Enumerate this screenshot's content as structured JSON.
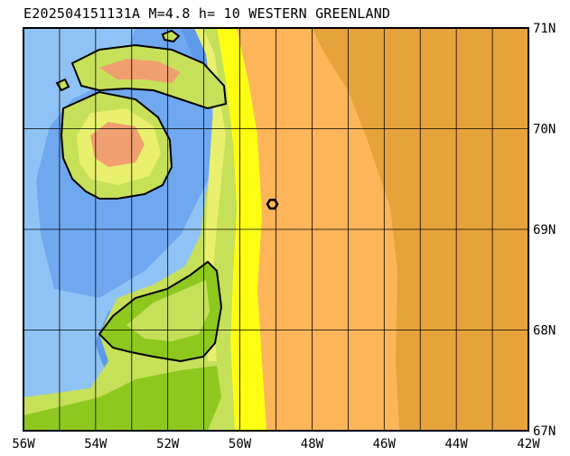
{
  "title": "E202504151131A M=4.8 h= 10 WESTERN GREENLAND",
  "map": {
    "lon_range": [
      -56,
      -42
    ],
    "lat_range": [
      67,
      71
    ],
    "lon_ticks": [
      {
        "value": -56,
        "label": "56W"
      },
      {
        "value": -54,
        "label": "54W"
      },
      {
        "value": -52,
        "label": "52W"
      },
      {
        "value": -50,
        "label": "50W"
      },
      {
        "value": -48,
        "label": "48W"
      },
      {
        "value": -46,
        "label": "46W"
      },
      {
        "value": -44,
        "label": "44W"
      },
      {
        "value": -42,
        "label": "42W"
      }
    ],
    "lat_ticks": [
      {
        "value": 71,
        "label": "71N"
      },
      {
        "value": 70,
        "label": "70N"
      },
      {
        "value": 69,
        "label": "69N"
      },
      {
        "value": 68,
        "label": "68N"
      },
      {
        "value": 67,
        "label": "67N"
      }
    ],
    "grid_step_lon": 1,
    "grid_step_lat": 1,
    "epicenter": {
      "lon": -49.1,
      "lat": 69.25,
      "marker": "hexagon"
    },
    "colors": {
      "ocean_deep": "#8fc3f5",
      "ocean_shelf": "#6fa8ef",
      "ocean_coast": "#5f9ae8",
      "land_low": "#8ec81e",
      "land_mid": "#c6e05a",
      "land_high": "#e8f06e",
      "ice_yellow": "#ffff14",
      "ice_orange": "#fdb55a",
      "ice_dark": "#e6a33c",
      "mountain": "#f0a070"
    }
  }
}
